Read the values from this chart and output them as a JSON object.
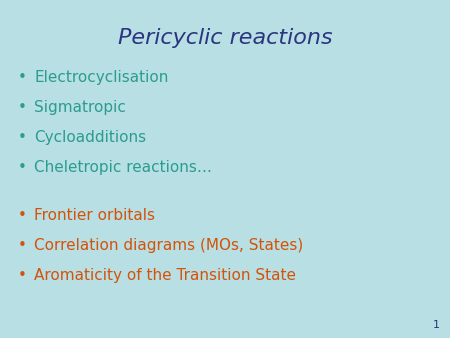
{
  "title": "Pericyclic reactions",
  "title_color": "#2b3580",
  "background_color": "#b8dfe3",
  "bullet_color_teal": "#2a9d8f",
  "bullet_color_red": "#d4520a",
  "bullet_char": "•",
  "teal_items": [
    "Electrocyclisation",
    "Sigmatropic",
    "Cycloadditions",
    "Cheletropic reactions…"
  ],
  "red_items": [
    "Frontier orbitals",
    "Correlation diagrams (MOs, States)",
    "Aromaticity of the Transition State"
  ],
  "page_number": "1",
  "title_fontsize": 16,
  "bullet_fontsize": 11,
  "page_num_fontsize": 8
}
